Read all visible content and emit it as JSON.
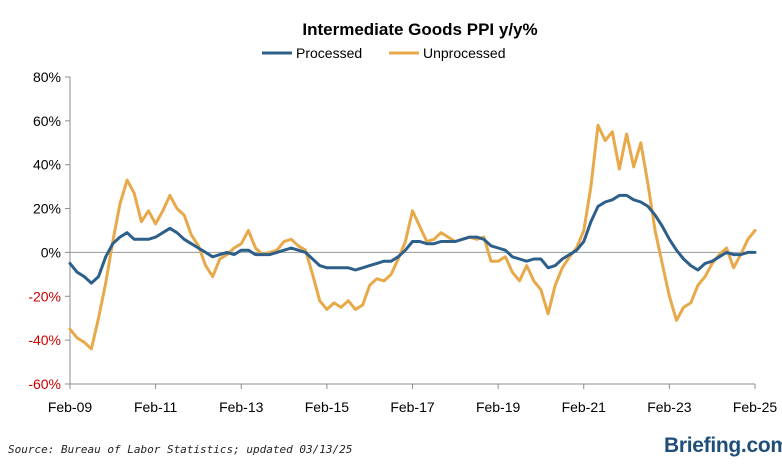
{
  "chart_data": {
    "type": "line",
    "title": "Intermediate Goods PPI y/y%",
    "xlabel": "",
    "ylabel": "",
    "ylim": [
      -60,
      80
    ],
    "y_ticks": [
      "80%",
      "60%",
      "40%",
      "20%",
      "0%",
      "-20%",
      "-40%",
      "-60%"
    ],
    "x_ticks": [
      "Feb-09",
      "Feb-11",
      "Feb-13",
      "Feb-15",
      "Feb-17",
      "Feb-19",
      "Feb-21",
      "Feb-23",
      "Feb-25"
    ],
    "x_range": [
      "2009-02",
      "2025-02"
    ],
    "grid": false,
    "legend_position": "top-center",
    "negative_tick_color": "#cc0000",
    "series": [
      {
        "name": "Processed",
        "color": "#2e5f8a",
        "points": [
          [
            "2009-02",
            -5
          ],
          [
            "2009-04",
            -9
          ],
          [
            "2009-06",
            -11
          ],
          [
            "2009-08",
            -14
          ],
          [
            "2009-10",
            -11
          ],
          [
            "2009-12",
            -2
          ],
          [
            "2010-02",
            4
          ],
          [
            "2010-04",
            7
          ],
          [
            "2010-06",
            9
          ],
          [
            "2010-08",
            6
          ],
          [
            "2010-10",
            6
          ],
          [
            "2010-12",
            6
          ],
          [
            "2011-02",
            7
          ],
          [
            "2011-04",
            9
          ],
          [
            "2011-06",
            11
          ],
          [
            "2011-08",
            9
          ],
          [
            "2011-10",
            6
          ],
          [
            "2011-12",
            4
          ],
          [
            "2012-02",
            2
          ],
          [
            "2012-04",
            0
          ],
          [
            "2012-06",
            -2
          ],
          [
            "2012-08",
            -1
          ],
          [
            "2012-10",
            0
          ],
          [
            "2012-12",
            -1
          ],
          [
            "2013-02",
            1
          ],
          [
            "2013-04",
            1
          ],
          [
            "2013-06",
            -1
          ],
          [
            "2013-08",
            -1
          ],
          [
            "2013-10",
            -1
          ],
          [
            "2013-12",
            0
          ],
          [
            "2014-02",
            1
          ],
          [
            "2014-04",
            2
          ],
          [
            "2014-06",
            1
          ],
          [
            "2014-08",
            0
          ],
          [
            "2014-10",
            -3
          ],
          [
            "2014-12",
            -6
          ],
          [
            "2015-02",
            -7
          ],
          [
            "2015-04",
            -7
          ],
          [
            "2015-06",
            -7
          ],
          [
            "2015-08",
            -7
          ],
          [
            "2015-10",
            -8
          ],
          [
            "2015-12",
            -7
          ],
          [
            "2016-02",
            -6
          ],
          [
            "2016-04",
            -5
          ],
          [
            "2016-06",
            -4
          ],
          [
            "2016-08",
            -4
          ],
          [
            "2016-10",
            -2
          ],
          [
            "2016-12",
            1
          ],
          [
            "2017-02",
            5
          ],
          [
            "2017-04",
            5
          ],
          [
            "2017-06",
            4
          ],
          [
            "2017-08",
            4
          ],
          [
            "2017-10",
            5
          ],
          [
            "2017-12",
            5
          ],
          [
            "2018-02",
            5
          ],
          [
            "2018-04",
            6
          ],
          [
            "2018-06",
            7
          ],
          [
            "2018-08",
            7
          ],
          [
            "2018-10",
            6
          ],
          [
            "2018-12",
            3
          ],
          [
            "2019-02",
            2
          ],
          [
            "2019-04",
            1
          ],
          [
            "2019-06",
            -2
          ],
          [
            "2019-08",
            -3
          ],
          [
            "2019-10",
            -4
          ],
          [
            "2019-12",
            -3
          ],
          [
            "2020-02",
            -3
          ],
          [
            "2020-04",
            -7
          ],
          [
            "2020-06",
            -6
          ],
          [
            "2020-08",
            -3
          ],
          [
            "2020-10",
            -1
          ],
          [
            "2020-12",
            1
          ],
          [
            "2021-02",
            5
          ],
          [
            "2021-04",
            14
          ],
          [
            "2021-06",
            21
          ],
          [
            "2021-08",
            23
          ],
          [
            "2021-10",
            24
          ],
          [
            "2021-12",
            26
          ],
          [
            "2022-02",
            26
          ],
          [
            "2022-04",
            24
          ],
          [
            "2022-06",
            23
          ],
          [
            "2022-08",
            21
          ],
          [
            "2022-10",
            17
          ],
          [
            "2022-12",
            12
          ],
          [
            "2023-02",
            6
          ],
          [
            "2023-04",
            1
          ],
          [
            "2023-06",
            -3
          ],
          [
            "2023-08",
            -6
          ],
          [
            "2023-10",
            -8
          ],
          [
            "2023-12",
            -5
          ],
          [
            "2024-02",
            -4
          ],
          [
            "2024-04",
            -2
          ],
          [
            "2024-06",
            0
          ],
          [
            "2024-08",
            -1
          ],
          [
            "2024-10",
            -1
          ],
          [
            "2024-12",
            0
          ],
          [
            "2025-02",
            0
          ]
        ]
      },
      {
        "name": "Unprocessed",
        "color": "#e8a94a",
        "points": [
          [
            "2009-02",
            -35
          ],
          [
            "2009-04",
            -39
          ],
          [
            "2009-06",
            -41
          ],
          [
            "2009-08",
            -44
          ],
          [
            "2009-10",
            -30
          ],
          [
            "2009-12",
            -14
          ],
          [
            "2010-02",
            5
          ],
          [
            "2010-04",
            22
          ],
          [
            "2010-06",
            33
          ],
          [
            "2010-08",
            27
          ],
          [
            "2010-10",
            14
          ],
          [
            "2010-12",
            19
          ],
          [
            "2011-02",
            13
          ],
          [
            "2011-04",
            19
          ],
          [
            "2011-06",
            26
          ],
          [
            "2011-08",
            20
          ],
          [
            "2011-10",
            17
          ],
          [
            "2011-12",
            8
          ],
          [
            "2012-02",
            3
          ],
          [
            "2012-04",
            -6
          ],
          [
            "2012-06",
            -11
          ],
          [
            "2012-08",
            -3
          ],
          [
            "2012-10",
            -1
          ],
          [
            "2012-12",
            2
          ],
          [
            "2013-02",
            4
          ],
          [
            "2013-04",
            10
          ],
          [
            "2013-06",
            2
          ],
          [
            "2013-08",
            -1
          ],
          [
            "2013-10",
            0
          ],
          [
            "2013-12",
            1
          ],
          [
            "2014-02",
            5
          ],
          [
            "2014-04",
            6
          ],
          [
            "2014-06",
            3
          ],
          [
            "2014-08",
            1
          ],
          [
            "2014-10",
            -10
          ],
          [
            "2014-12",
            -22
          ],
          [
            "2015-02",
            -26
          ],
          [
            "2015-04",
            -23
          ],
          [
            "2015-06",
            -25
          ],
          [
            "2015-08",
            -22
          ],
          [
            "2015-10",
            -26
          ],
          [
            "2015-12",
            -24
          ],
          [
            "2016-02",
            -15
          ],
          [
            "2016-04",
            -12
          ],
          [
            "2016-06",
            -13
          ],
          [
            "2016-08",
            -10
          ],
          [
            "2016-10",
            -3
          ],
          [
            "2016-12",
            5
          ],
          [
            "2017-02",
            19
          ],
          [
            "2017-04",
            12
          ],
          [
            "2017-06",
            5
          ],
          [
            "2017-08",
            6
          ],
          [
            "2017-10",
            9
          ],
          [
            "2017-12",
            7
          ],
          [
            "2018-02",
            5
          ],
          [
            "2018-04",
            6
          ],
          [
            "2018-06",
            7
          ],
          [
            "2018-08",
            6
          ],
          [
            "2018-10",
            7
          ],
          [
            "2018-12",
            -4
          ],
          [
            "2019-02",
            -4
          ],
          [
            "2019-04",
            -2
          ],
          [
            "2019-06",
            -9
          ],
          [
            "2019-08",
            -13
          ],
          [
            "2019-10",
            -6
          ],
          [
            "2019-12",
            -13
          ],
          [
            "2020-02",
            -17
          ],
          [
            "2020-04",
            -28
          ],
          [
            "2020-06",
            -15
          ],
          [
            "2020-08",
            -7
          ],
          [
            "2020-10",
            -2
          ],
          [
            "2020-12",
            2
          ],
          [
            "2021-02",
            10
          ],
          [
            "2021-04",
            30
          ],
          [
            "2021-06",
            58
          ],
          [
            "2021-08",
            51
          ],
          [
            "2021-10",
            55
          ],
          [
            "2021-12",
            38
          ],
          [
            "2022-02",
            54
          ],
          [
            "2022-04",
            39
          ],
          [
            "2022-06",
            50
          ],
          [
            "2022-08",
            31
          ],
          [
            "2022-10",
            10
          ],
          [
            "2022-12",
            -5
          ],
          [
            "2023-02",
            -20
          ],
          [
            "2023-04",
            -31
          ],
          [
            "2023-06",
            -25
          ],
          [
            "2023-08",
            -23
          ],
          [
            "2023-10",
            -15
          ],
          [
            "2023-12",
            -11
          ],
          [
            "2024-02",
            -5
          ],
          [
            "2024-04",
            -1
          ],
          [
            "2024-06",
            2
          ],
          [
            "2024-08",
            -7
          ],
          [
            "2024-10",
            -1
          ],
          [
            "2024-12",
            6
          ],
          [
            "2025-02",
            10
          ]
        ]
      }
    ]
  },
  "footer": {
    "source": "Source: Bureau of Labor Statistics; updated 03/13/25",
    "brand": "Briefing.com"
  }
}
